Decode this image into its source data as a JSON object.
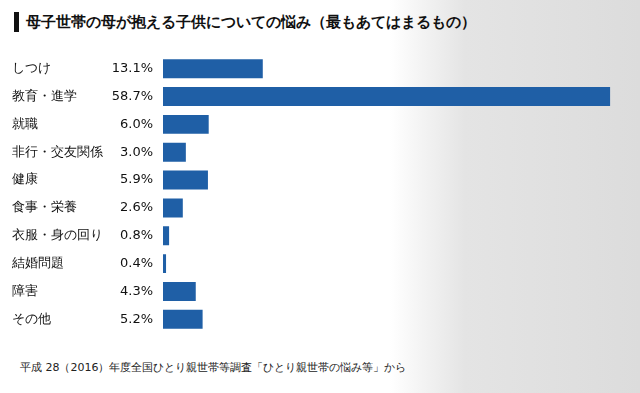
{
  "chart_data": {
    "type": "bar",
    "orientation": "horizontal",
    "title": "母子世帯の母が抱える子供についての悩み（最もあてはまるもの）",
    "source": "平成 28（2016）年度全国ひとり親世帯等調査「ひとり親世帯の悩み等」から",
    "categories": [
      "しつけ",
      "教育・進学",
      "就職",
      "非行・交友関係",
      "健康",
      "食事・栄養",
      "衣服・身の回り",
      "結婚問題",
      "障害",
      "その他"
    ],
    "values": [
      13.1,
      58.7,
      6.0,
      3.0,
      5.9,
      2.6,
      0.8,
      0.4,
      4.3,
      5.2
    ],
    "value_labels": [
      "13.1%",
      "58.7%",
      "6.0%",
      "3.0%",
      "5.9%",
      "2.6%",
      "0.8%",
      "0.4%",
      "4.3%",
      "5.2%"
    ],
    "data_labels": true,
    "color": "#1f5fa6",
    "xlim": [
      0,
      60
    ],
    "grid": false,
    "tick_labels": "y"
  }
}
